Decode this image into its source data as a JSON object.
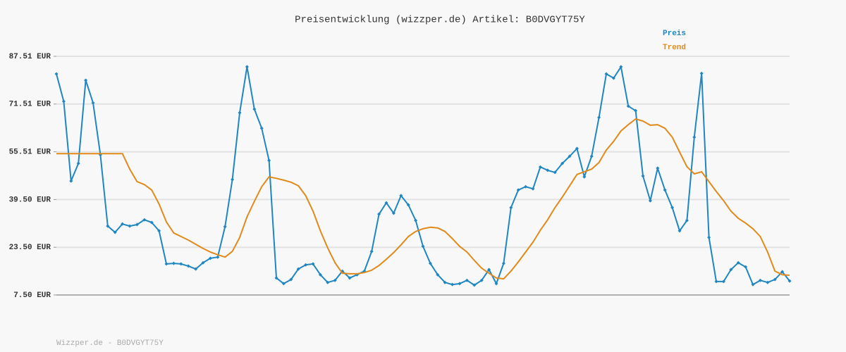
{
  "chart_data": {
    "type": "line",
    "title": "Preisentwicklung (wizzper.de) Artikel: B0DVGYT75Y",
    "footer": "Wizzper.de - B0DVGYT75Y",
    "legend": "top-right",
    "grid": true,
    "ylim": [
      7.5,
      87.51
    ],
    "yticks": [
      {
        "value": 7.5,
        "label": "7.50 EUR"
      },
      {
        "value": 23.5,
        "label": "23.50 EUR"
      },
      {
        "value": 39.5,
        "label": "39.50 EUR"
      },
      {
        "value": 55.51,
        "label": "55.51 EUR"
      },
      {
        "value": 71.51,
        "label": "71.51 EUR"
      },
      {
        "value": 87.51,
        "label": "87.51 EUR"
      }
    ],
    "series": [
      {
        "name": "Preis",
        "color": "#1f86c1",
        "values": [
          81.6,
          72.4,
          45.7,
          51.6,
          79.5,
          71.9,
          54.5,
          30.6,
          28.5,
          31.3,
          30.6,
          31.1,
          32.7,
          31.8,
          29.0,
          17.9,
          18.1,
          17.9,
          17.2,
          16.2,
          18.3,
          19.8,
          20.2,
          30.4,
          46.2,
          68.6,
          84.0,
          69.8,
          63.4,
          52.6,
          13.2,
          11.3,
          12.7,
          16.2,
          17.6,
          17.9,
          14.3,
          11.7,
          12.4,
          15.5,
          13.2,
          14.3,
          15.5,
          22.1,
          34.6,
          38.4,
          34.9,
          40.8,
          37.7,
          32.5,
          23.8,
          18.1,
          14.3,
          11.7,
          11.0,
          11.3,
          12.4,
          10.8,
          12.4,
          16.0,
          11.3,
          18.1,
          36.8,
          42.7,
          43.8,
          43.1,
          50.4,
          49.3,
          48.6,
          51.6,
          54.0,
          56.6,
          47.1,
          54.0,
          67.0,
          81.6,
          80.2,
          84.0,
          70.8,
          69.3,
          47.4,
          39.1,
          50.0,
          42.7,
          36.8,
          29.0,
          32.5,
          60.4,
          81.8,
          26.8,
          12.0,
          12.0,
          16.0,
          18.3,
          16.9,
          11.0,
          12.4,
          11.7,
          12.7,
          15.3,
          12.2
        ]
      },
      {
        "name": "Trend",
        "color": "#e08a1c",
        "values": [
          54.9,
          54.9,
          54.9,
          54.9,
          54.9,
          54.9,
          54.9,
          54.9,
          54.9,
          54.9,
          49.7,
          45.5,
          44.5,
          42.7,
          38.0,
          32.0,
          28.3,
          27.1,
          25.9,
          24.5,
          23.1,
          21.9,
          21.0,
          20.2,
          22.1,
          26.8,
          33.7,
          38.9,
          43.8,
          47.1,
          46.6,
          46.0,
          45.3,
          44.1,
          40.8,
          35.6,
          29.0,
          23.3,
          18.3,
          14.8,
          14.6,
          14.6,
          15.0,
          15.8,
          17.4,
          19.5,
          21.7,
          24.3,
          27.1,
          28.8,
          29.7,
          30.2,
          30.0,
          28.8,
          26.4,
          23.8,
          21.9,
          19.1,
          16.5,
          14.8,
          13.2,
          12.9,
          15.5,
          18.6,
          21.9,
          25.2,
          29.2,
          32.7,
          36.8,
          40.3,
          44.1,
          47.9,
          48.8,
          49.7,
          51.9,
          56.1,
          59.0,
          62.5,
          64.6,
          66.5,
          65.8,
          64.4,
          64.6,
          63.4,
          60.4,
          55.4,
          50.5,
          48.1,
          48.8,
          45.5,
          42.2,
          39.1,
          35.6,
          33.2,
          31.6,
          29.7,
          27.1,
          21.9,
          15.5,
          14.3,
          14.1
        ]
      }
    ]
  }
}
